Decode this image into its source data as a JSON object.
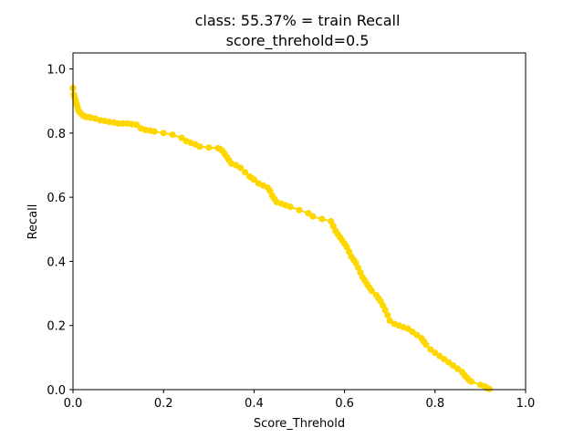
{
  "chart_data": {
    "type": "line",
    "title": "class: 55.37% = train Recall",
    "subtitle": "score_threhold=0.5",
    "xlabel": "Score_Threhold",
    "ylabel": "Recall",
    "xlim": [
      0.0,
      1.0
    ],
    "ylim": [
      0.0,
      1.05
    ],
    "xticks": [
      "0.0",
      "0.2",
      "0.4",
      "0.6",
      "0.8",
      "1.0"
    ],
    "yticks": [
      "0.0",
      "0.2",
      "0.4",
      "0.6",
      "0.8",
      "1.0"
    ],
    "grid": false,
    "legend": "none",
    "series": [
      {
        "color": "#ffd700",
        "marker": "circle",
        "x": [
          0.0,
          0.002,
          0.004,
          0.006,
          0.008,
          0.01,
          0.012,
          0.015,
          0.018,
          0.022,
          0.026,
          0.03,
          0.035,
          0.04,
          0.05,
          0.06,
          0.07,
          0.08,
          0.09,
          0.1,
          0.11,
          0.12,
          0.13,
          0.14,
          0.15,
          0.16,
          0.17,
          0.18,
          0.2,
          0.22,
          0.24,
          0.25,
          0.26,
          0.27,
          0.28,
          0.3,
          0.32,
          0.325,
          0.33,
          0.335,
          0.34,
          0.345,
          0.35,
          0.36,
          0.37,
          0.38,
          0.39,
          0.395,
          0.4,
          0.41,
          0.42,
          0.43,
          0.435,
          0.44,
          0.445,
          0.45,
          0.46,
          0.47,
          0.48,
          0.5,
          0.52,
          0.53,
          0.55,
          0.57,
          0.575,
          0.58,
          0.585,
          0.59,
          0.595,
          0.6,
          0.605,
          0.61,
          0.615,
          0.62,
          0.625,
          0.63,
          0.635,
          0.64,
          0.645,
          0.65,
          0.655,
          0.66,
          0.67,
          0.675,
          0.68,
          0.685,
          0.69,
          0.695,
          0.7,
          0.71,
          0.72,
          0.73,
          0.74,
          0.75,
          0.76,
          0.77,
          0.775,
          0.78,
          0.79,
          0.8,
          0.81,
          0.82,
          0.83,
          0.84,
          0.85,
          0.86,
          0.865,
          0.87,
          0.875,
          0.88,
          0.9,
          0.91,
          0.915,
          0.92
        ],
        "y": [
          0.94,
          0.92,
          0.91,
          0.9,
          0.89,
          0.88,
          0.87,
          0.865,
          0.86,
          0.855,
          0.852,
          0.85,
          0.85,
          0.848,
          0.845,
          0.84,
          0.838,
          0.835,
          0.833,
          0.83,
          0.83,
          0.83,
          0.828,
          0.826,
          0.815,
          0.81,
          0.808,
          0.805,
          0.8,
          0.795,
          0.785,
          0.775,
          0.77,
          0.765,
          0.758,
          0.755,
          0.753,
          0.75,
          0.745,
          0.735,
          0.725,
          0.715,
          0.705,
          0.7,
          0.692,
          0.678,
          0.665,
          0.66,
          0.655,
          0.643,
          0.637,
          0.63,
          0.62,
          0.605,
          0.595,
          0.585,
          0.58,
          0.575,
          0.57,
          0.56,
          0.55,
          0.54,
          0.532,
          0.525,
          0.51,
          0.495,
          0.485,
          0.475,
          0.465,
          0.455,
          0.445,
          0.43,
          0.415,
          0.405,
          0.395,
          0.38,
          0.365,
          0.35,
          0.34,
          0.328,
          0.318,
          0.308,
          0.295,
          0.285,
          0.275,
          0.262,
          0.248,
          0.232,
          0.215,
          0.205,
          0.2,
          0.195,
          0.19,
          0.18,
          0.17,
          0.16,
          0.15,
          0.14,
          0.125,
          0.115,
          0.105,
          0.095,
          0.085,
          0.075,
          0.065,
          0.055,
          0.045,
          0.038,
          0.03,
          0.025,
          0.015,
          0.01,
          0.005,
          0.002
        ]
      }
    ]
  }
}
